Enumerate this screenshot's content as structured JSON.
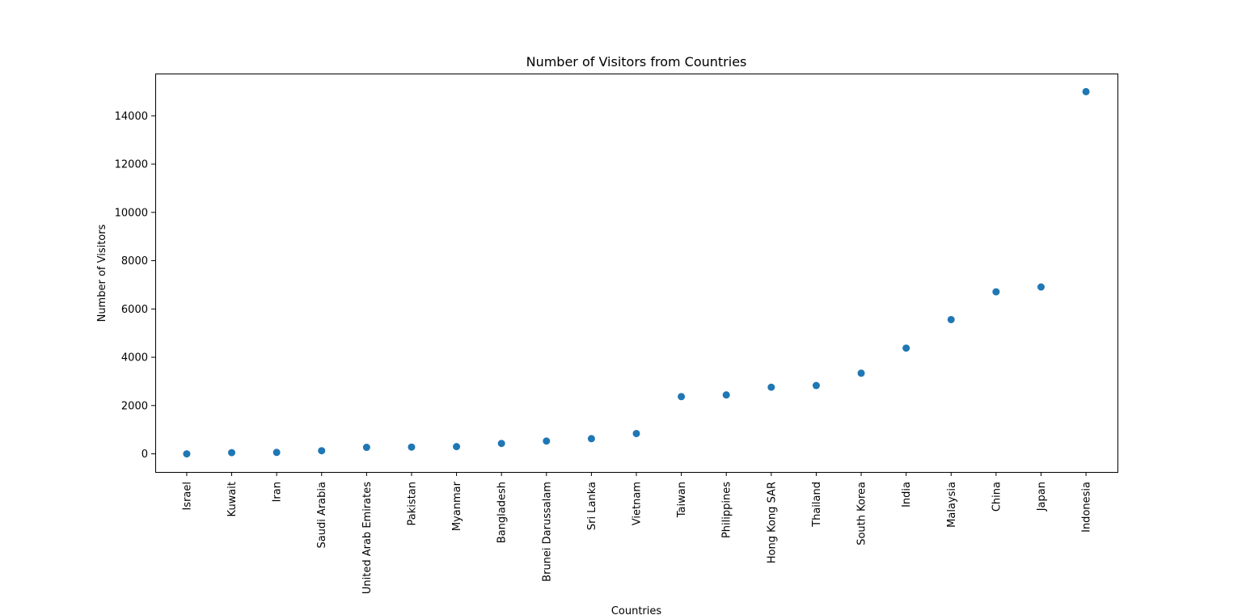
{
  "chart_data": {
    "type": "scatter",
    "title": "Number of Visitors from Countries",
    "xlabel": "Countries",
    "ylabel": "Number of Visitors",
    "categories": [
      "Israel",
      "Kuwait",
      "Iran",
      "Saudi Arabia",
      "United Arab Emirates",
      "Pakistan",
      "Myanmar",
      "Bangladesh",
      "Brunei Darussalam",
      "Sri Lanka",
      "Vietnam",
      "Taiwan",
      "Philippines",
      "Hong Kong SAR",
      "Thailand",
      "South Korea",
      "India",
      "Malaysia",
      "China",
      "Japan",
      "Indonesia"
    ],
    "values": [
      0,
      50,
      60,
      130,
      270,
      280,
      300,
      430,
      530,
      630,
      840,
      2370,
      2440,
      2760,
      2830,
      3340,
      4380,
      5560,
      6710,
      6910,
      15000
    ],
    "yticks": [
      0,
      2000,
      4000,
      6000,
      8000,
      10000,
      12000,
      14000
    ],
    "ylim": [
      -750,
      15750
    ],
    "grid": false,
    "colors": {
      "marker": "#1f77b4",
      "axes": "#000000",
      "background": "#ffffff"
    }
  }
}
